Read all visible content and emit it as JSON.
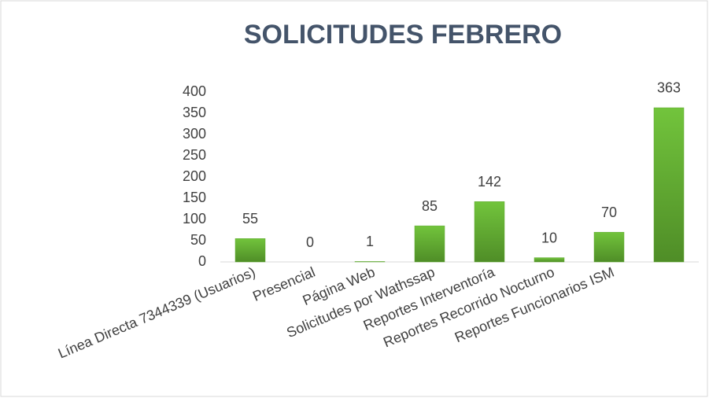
{
  "chart_data": {
    "type": "bar",
    "title": "SOLICITUDES FEBRERO",
    "categories": [
      "Línea Directa 7344339 (Usuarios)",
      "Presencial",
      "Página Web",
      "Solicitudes  por Wathssap",
      "Reportes Interventoría",
      "Reportes Recorrido Nocturno",
      "Reportes Funcionarios ISM",
      null
    ],
    "values": [
      55,
      0,
      1,
      85,
      142,
      10,
      70,
      363
    ],
    "color": "#5ea82f",
    "ylim": [
      0,
      400
    ],
    "yticks": [
      0,
      50,
      100,
      150,
      200,
      250,
      300,
      350,
      400
    ],
    "grid": false
  }
}
